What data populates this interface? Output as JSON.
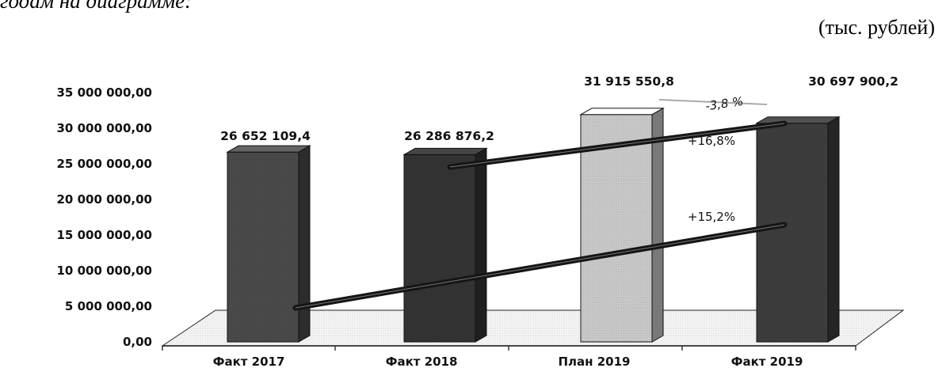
{
  "caption_fragment": "годам на диаграмме:",
  "unit": "(тыс. рублей)",
  "chart_data": {
    "type": "bar",
    "categories": [
      "Факт 2017",
      "Факт 2018",
      "План 2019",
      "Факт 2019"
    ],
    "values": [
      26652109.4,
      26286876.2,
      31915550.8,
      30697900.2
    ],
    "data_labels": [
      "26 652 109,4",
      "26 286 876,2",
      "31 915 550,8",
      "30 697 900,2"
    ],
    "ylim": [
      0,
      35000000
    ],
    "y_ticks": [
      0,
      5000000,
      10000000,
      15000000,
      20000000,
      25000000,
      30000000,
      35000000
    ],
    "y_tick_labels": [
      "0,00",
      "5 000 000,00",
      "10 000 000,00",
      "15 000 000,00",
      "20 000 000,00",
      "25 000 000,00",
      "30 000 000,00",
      "35 000 000,00"
    ],
    "grid": false,
    "bar_colors": [
      "#4a4a4a",
      "#333333",
      "#c9c9c9",
      "#3d3d3d"
    ],
    "annotations": [
      {
        "text": "-3,8 %",
        "from": "План 2019",
        "to": "Факт 2019",
        "italic": true
      },
      {
        "text": "+16,8%",
        "from": "Факт 2018",
        "to": "Факт 2019",
        "italic": false
      },
      {
        "text": "+15,2%",
        "from": "Факт 2017",
        "to": "Факт 2019",
        "italic": false
      }
    ]
  }
}
